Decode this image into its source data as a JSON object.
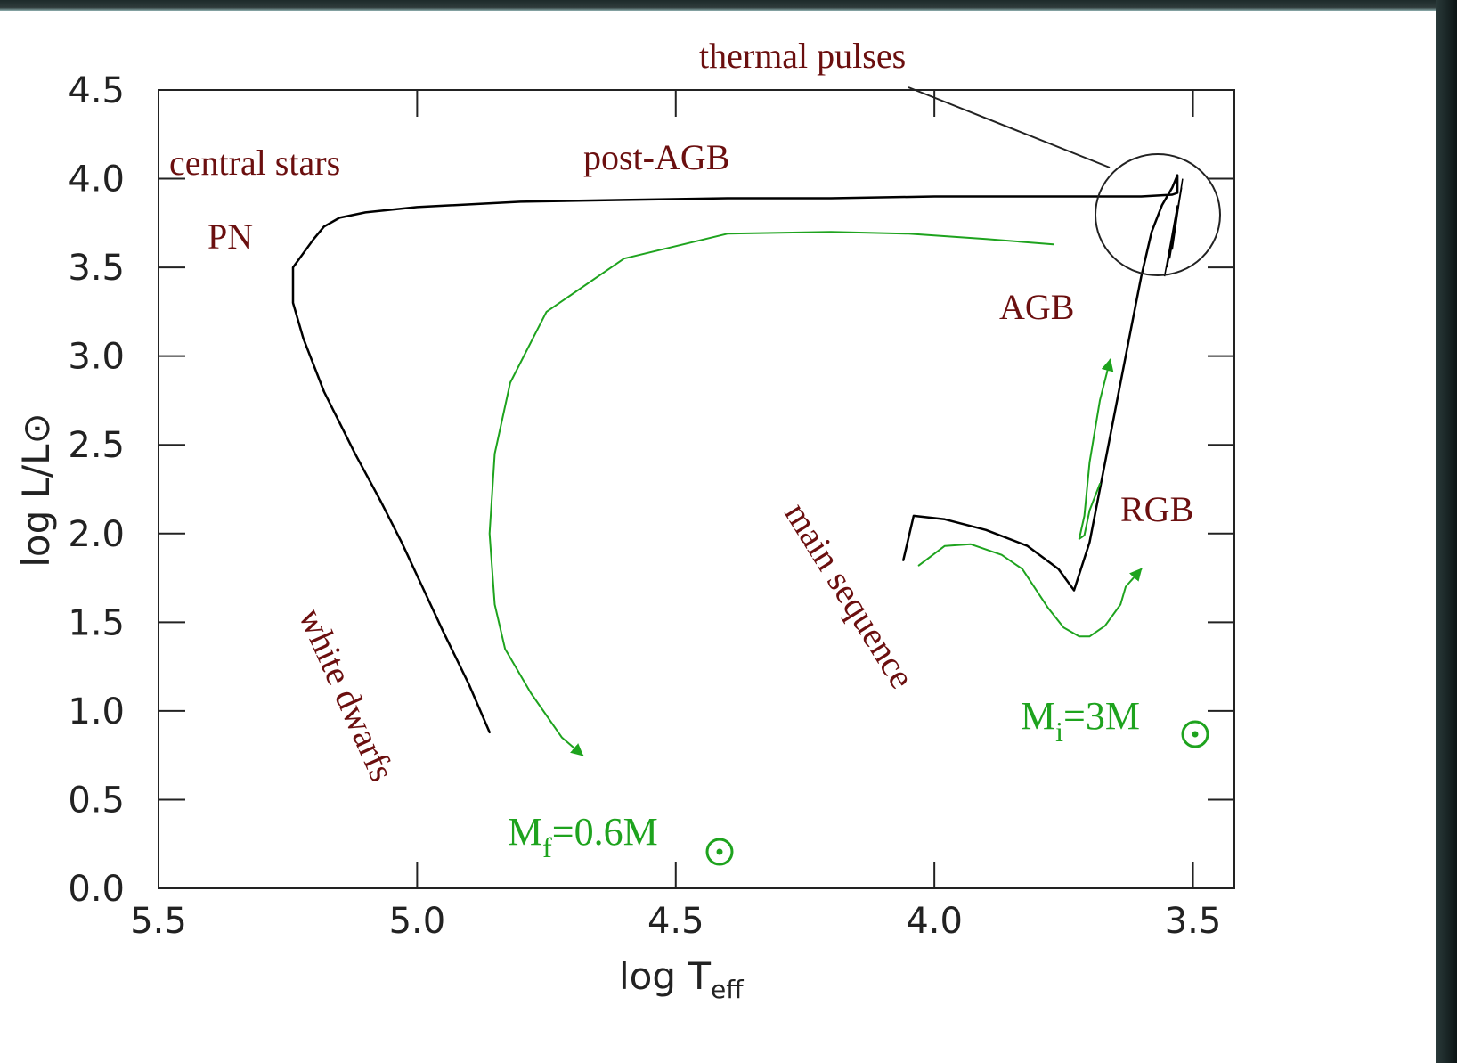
{
  "chart_data": {
    "type": "line",
    "title": "",
    "xlabel": "log T",
    "xlabel_sub": "eff",
    "ylabel": "log L/L⊙",
    "xlim": [
      5.5,
      3.42
    ],
    "ylim": [
      0.0,
      4.5
    ],
    "x_ticks": [
      "5.5",
      "5.0",
      "4.5",
      "4.0",
      "3.5"
    ],
    "y_ticks": [
      "0.0",
      "0.5",
      "1.0",
      "1.5",
      "2.0",
      "2.5",
      "3.0",
      "3.5",
      "4.0",
      "4.5"
    ],
    "grid": false,
    "series": [
      {
        "color": "#000000",
        "x": [
          4.06,
          4.04,
          3.98,
          3.9,
          3.82,
          3.76,
          3.73,
          3.7,
          3.68,
          3.66,
          3.64,
          3.62,
          3.6,
          3.58,
          3.56,
          3.54,
          3.53,
          3.53,
          3.54,
          3.6,
          3.7,
          3.8,
          3.9,
          4.0,
          4.2,
          4.4,
          4.6,
          4.8,
          5.0,
          5.1,
          5.15,
          5.18,
          5.2,
          5.22,
          5.24,
          5.24,
          5.22,
          5.18,
          5.12,
          5.07,
          5.03,
          4.99,
          4.95,
          4.9,
          4.86
        ],
        "y": [
          1.85,
          2.1,
          2.08,
          2.02,
          1.93,
          1.8,
          1.68,
          1.95,
          2.25,
          2.55,
          2.85,
          3.15,
          3.45,
          3.7,
          3.85,
          3.95,
          4.02,
          3.92,
          3.91,
          3.9,
          3.9,
          3.9,
          3.9,
          3.9,
          3.89,
          3.89,
          3.88,
          3.87,
          3.84,
          3.81,
          3.78,
          3.73,
          3.66,
          3.58,
          3.5,
          3.3,
          3.1,
          2.8,
          2.45,
          2.18,
          1.95,
          1.7,
          1.45,
          1.15,
          0.88
        ]
      },
      {
        "color": "#1ea31e",
        "x": [
          4.03,
          3.98,
          3.93,
          3.87,
          3.83,
          3.78,
          3.75,
          3.72,
          3.7,
          3.67,
          3.64,
          3.63,
          3.6
        ],
        "y": [
          1.82,
          1.93,
          1.94,
          1.88,
          1.8,
          1.58,
          1.47,
          1.42,
          1.42,
          1.48,
          1.6,
          1.7,
          1.8
        ]
      },
      {
        "color": "#1ea31e",
        "x": [
          3.68,
          3.7,
          3.71,
          3.72,
          3.71,
          3.7,
          3.68,
          3.66
        ],
        "y": [
          2.28,
          2.13,
          1.99,
          1.97,
          2.1,
          2.4,
          2.75,
          2.98
        ]
      },
      {
        "color": "#1ea31e",
        "x": [
          3.77,
          3.9,
          4.05,
          4.2,
          4.4,
          4.6,
          4.75,
          4.82,
          4.85,
          4.86,
          4.85,
          4.83,
          4.78,
          4.72,
          4.68
        ],
        "y": [
          3.63,
          3.66,
          3.69,
          3.7,
          3.69,
          3.55,
          3.25,
          2.85,
          2.45,
          2.0,
          1.6,
          1.35,
          1.1,
          0.85,
          0.75
        ]
      }
    ],
    "annotations": {
      "thermal_pulses": "thermal pulses",
      "central_stars": "central stars",
      "post_agb": "post-AGB",
      "pn": "PN",
      "agb": "AGB",
      "rgb": "RGB",
      "main_sequence": "main sequence",
      "white_dwarfs": "white dwarfs"
    },
    "mass_final": {
      "main": "M",
      "sub": "f",
      "rest": "=0.6M"
    },
    "mass_initial": {
      "main": "M",
      "sub": "i",
      "rest": "=3M"
    }
  }
}
